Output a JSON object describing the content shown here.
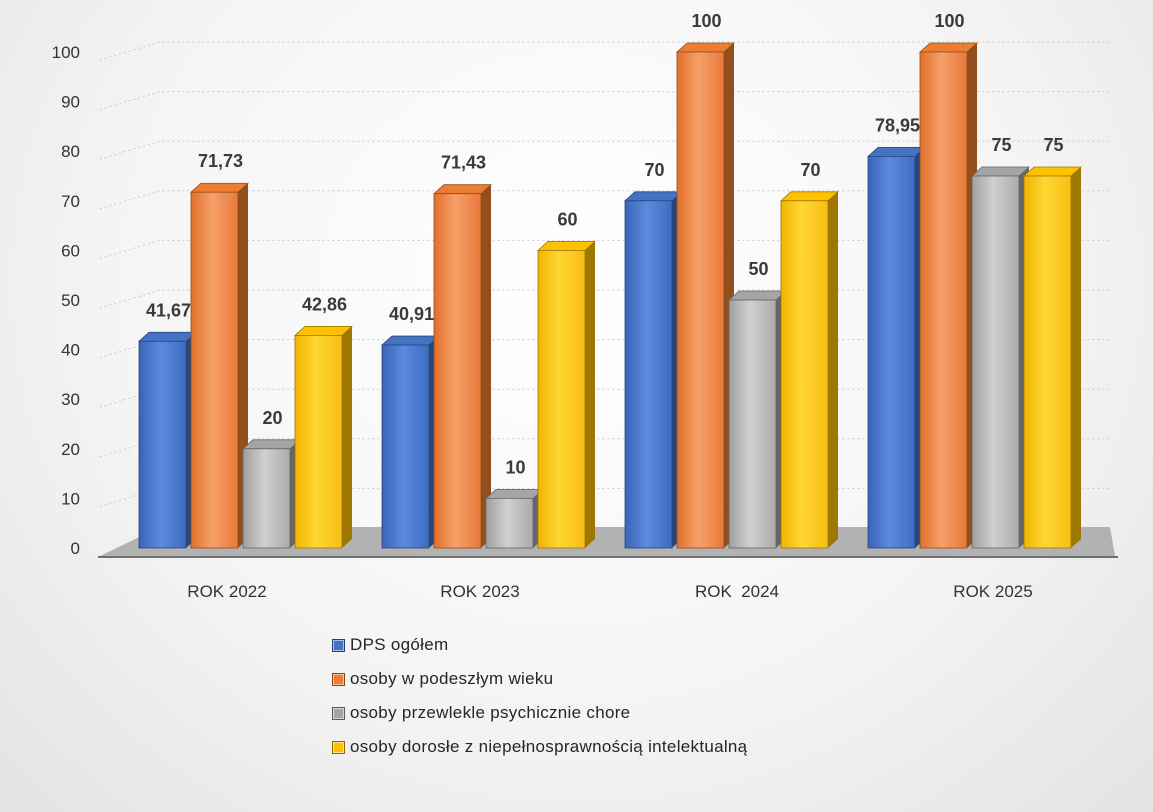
{
  "chart_data": {
    "type": "bar",
    "categories": [
      "ROK 2022",
      "ROK 2023",
      "ROK  2024",
      "ROK 2025"
    ],
    "series": [
      {
        "name": "DPS ogółem",
        "color": "#4472C4",
        "values": [
          41.67,
          40.91,
          70,
          78.95
        ],
        "labels": [
          "41,67",
          "40,91",
          "70",
          "78,95"
        ]
      },
      {
        "name": "osoby w podeszłym wieku",
        "color": "#ED7D31",
        "values": [
          71.73,
          71.43,
          100,
          100
        ],
        "labels": [
          "71,73",
          "71,43",
          "100",
          "100"
        ]
      },
      {
        "name": "osoby przewlekle psychicznie chore",
        "color": "#A5A5A5",
        "values": [
          20,
          10,
          50,
          75
        ],
        "labels": [
          "20",
          "10",
          "50",
          "75"
        ]
      },
      {
        "name": "osoby dorosłe z niepełnosprawnością intelektualną",
        "color": "#FFC000",
        "values": [
          42.86,
          60,
          70,
          75
        ],
        "labels": [
          "42,86",
          "60",
          "70",
          "75"
        ]
      }
    ],
    "y_ticks": [
      "0",
      "10",
      "20",
      "30",
      "40",
      "50",
      "60",
      "70",
      "80",
      "90",
      "100"
    ],
    "ylim": [
      0,
      100
    ],
    "grid": true,
    "legend_position": "bottom",
    "style": "3d-clustered-column"
  }
}
